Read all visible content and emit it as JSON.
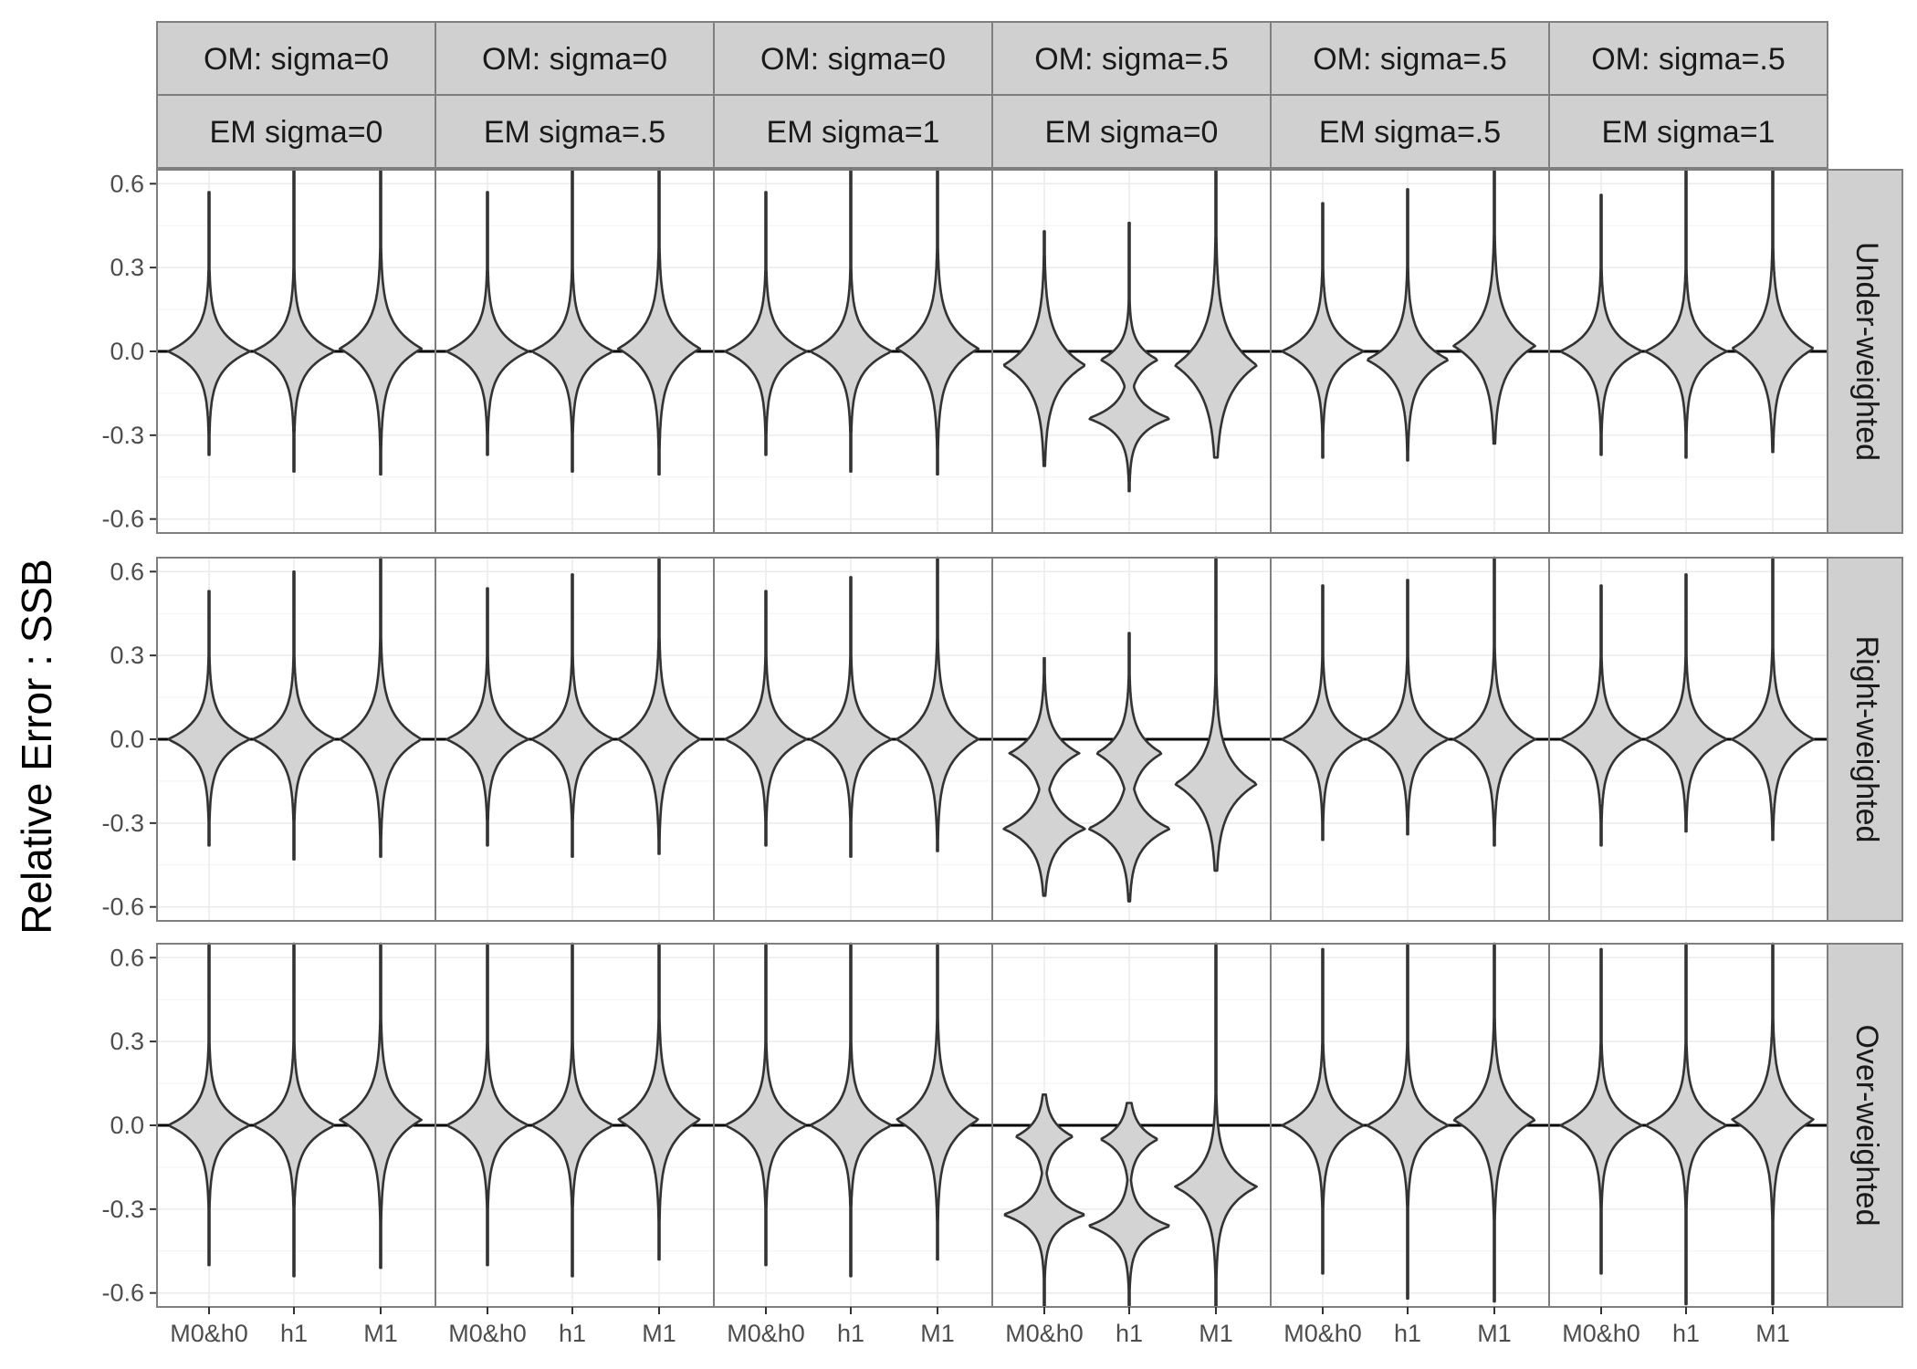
{
  "chart_data": {
    "type": "violin",
    "ylabel": "Relative Error : SSB",
    "xlabel": "",
    "ylim": [
      -0.65,
      0.65
    ],
    "yticks": [
      0.6,
      0.3,
      0.0,
      -0.3,
      -0.6
    ],
    "ytick_labels": [
      "0.6",
      "0.3",
      "0.0",
      "-0.3",
      "-0.6"
    ],
    "categories": [
      "M0&h0",
      "h1",
      "M1"
    ],
    "reference_line": 0.0,
    "grid": true,
    "fill_color": "#d3d3d3",
    "line_color": "#333333",
    "strip_color": "#d0d0d0",
    "columns": [
      {
        "om": "OM: sigma=0",
        "em": "EM sigma=0"
      },
      {
        "om": "OM: sigma=0",
        "em": "EM sigma=.5"
      },
      {
        "om": "OM: sigma=0",
        "em": "EM sigma=1"
      },
      {
        "om": "OM: sigma=.5",
        "em": "EM sigma=0"
      },
      {
        "om": "OM: sigma=.5",
        "em": "EM sigma=.5"
      },
      {
        "om": "OM: sigma=.5",
        "em": "EM sigma=1"
      }
    ],
    "rows": [
      "Under-weighted",
      "Right-weighted",
      "Over-weighted"
    ],
    "panels": [
      [
        [
          {
            "min": -0.37,
            "max": 0.57,
            "modes": [
              [
                0,
                1
              ]
            ],
            "spread": 0.09
          },
          {
            "min": -0.43,
            "max": 0.65,
            "modes": [
              [
                0,
                1
              ]
            ],
            "spread": 0.09
          },
          {
            "min": -0.44,
            "max": 0.65,
            "modes": [
              [
                0.01,
                1
              ]
            ],
            "spread": 0.11
          }
        ],
        [
          {
            "min": -0.37,
            "max": 0.57,
            "modes": [
              [
                0,
                1
              ]
            ],
            "spread": 0.09
          },
          {
            "min": -0.43,
            "max": 0.65,
            "modes": [
              [
                0,
                1
              ]
            ],
            "spread": 0.09
          },
          {
            "min": -0.44,
            "max": 0.65,
            "modes": [
              [
                0.01,
                1
              ]
            ],
            "spread": 0.11
          }
        ],
        [
          {
            "min": -0.37,
            "max": 0.57,
            "modes": [
              [
                0,
                1
              ]
            ],
            "spread": 0.09
          },
          {
            "min": -0.43,
            "max": 0.65,
            "modes": [
              [
                0,
                1
              ]
            ],
            "spread": 0.09
          },
          {
            "min": -0.44,
            "max": 0.65,
            "modes": [
              [
                0.01,
                1
              ]
            ],
            "spread": 0.11
          }
        ],
        [
          {
            "min": -0.41,
            "max": 0.43,
            "modes": [
              [
                -0.05,
                1
              ]
            ],
            "spread": 0.12
          },
          {
            "min": -0.5,
            "max": 0.46,
            "modes": [
              [
                -0.03,
                0.7
              ],
              [
                -0.24,
                1
              ]
            ],
            "spread": 0.07
          },
          {
            "min": -0.38,
            "max": 0.65,
            "modes": [
              [
                -0.05,
                1
              ]
            ],
            "spread": 0.14
          }
        ],
        [
          {
            "min": -0.38,
            "max": 0.53,
            "modes": [
              [
                0,
                1
              ]
            ],
            "spread": 0.09
          },
          {
            "min": -0.39,
            "max": 0.58,
            "modes": [
              [
                -0.03,
                1
              ]
            ],
            "spread": 0.1
          },
          {
            "min": -0.33,
            "max": 0.65,
            "modes": [
              [
                0.02,
                1
              ]
            ],
            "spread": 0.12
          }
        ],
        [
          {
            "min": -0.37,
            "max": 0.56,
            "modes": [
              [
                0,
                1
              ]
            ],
            "spread": 0.09
          },
          {
            "min": -0.38,
            "max": 0.65,
            "modes": [
              [
                0,
                1
              ]
            ],
            "spread": 0.09
          },
          {
            "min": -0.36,
            "max": 0.65,
            "modes": [
              [
                0.01,
                1
              ]
            ],
            "spread": 0.11
          }
        ]
      ],
      [
        [
          {
            "min": -0.38,
            "max": 0.53,
            "modes": [
              [
                0,
                1
              ]
            ],
            "spread": 0.09
          },
          {
            "min": -0.43,
            "max": 0.6,
            "modes": [
              [
                0,
                1
              ]
            ],
            "spread": 0.09
          },
          {
            "min": -0.42,
            "max": 0.65,
            "modes": [
              [
                0,
                1
              ]
            ],
            "spread": 0.11
          }
        ],
        [
          {
            "min": -0.38,
            "max": 0.54,
            "modes": [
              [
                0,
                1
              ]
            ],
            "spread": 0.09
          },
          {
            "min": -0.42,
            "max": 0.59,
            "modes": [
              [
                0,
                1
              ]
            ],
            "spread": 0.09
          },
          {
            "min": -0.41,
            "max": 0.65,
            "modes": [
              [
                0,
                1
              ]
            ],
            "spread": 0.11
          }
        ],
        [
          {
            "min": -0.38,
            "max": 0.53,
            "modes": [
              [
                0,
                1
              ]
            ],
            "spread": 0.09
          },
          {
            "min": -0.42,
            "max": 0.58,
            "modes": [
              [
                0,
                1
              ]
            ],
            "spread": 0.09
          },
          {
            "min": -0.4,
            "max": 0.65,
            "modes": [
              [
                0,
                1
              ]
            ],
            "spread": 0.11
          }
        ],
        [
          {
            "min": -0.56,
            "max": 0.29,
            "modes": [
              [
                -0.05,
                0.85
              ],
              [
                -0.32,
                1
              ]
            ],
            "spread": 0.09
          },
          {
            "min": -0.58,
            "max": 0.38,
            "modes": [
              [
                -0.05,
                0.8
              ],
              [
                -0.32,
                1
              ]
            ],
            "spread": 0.09
          },
          {
            "min": -0.47,
            "max": 0.65,
            "modes": [
              [
                -0.16,
                1
              ]
            ],
            "spread": 0.12
          }
        ],
        [
          {
            "min": -0.36,
            "max": 0.55,
            "modes": [
              [
                0,
                1
              ]
            ],
            "spread": 0.09
          },
          {
            "min": -0.34,
            "max": 0.57,
            "modes": [
              [
                0,
                1
              ]
            ],
            "spread": 0.09
          },
          {
            "min": -0.38,
            "max": 0.65,
            "modes": [
              [
                0,
                1
              ]
            ],
            "spread": 0.1
          }
        ],
        [
          {
            "min": -0.38,
            "max": 0.55,
            "modes": [
              [
                0,
                1
              ]
            ],
            "spread": 0.09
          },
          {
            "min": -0.33,
            "max": 0.59,
            "modes": [
              [
                0,
                1
              ]
            ],
            "spread": 0.09
          },
          {
            "min": -0.36,
            "max": 0.65,
            "modes": [
              [
                0,
                1
              ]
            ],
            "spread": 0.1
          }
        ]
      ],
      [
        [
          {
            "min": -0.5,
            "max": 0.65,
            "modes": [
              [
                0,
                1
              ]
            ],
            "spread": 0.09
          },
          {
            "min": -0.54,
            "max": 0.65,
            "modes": [
              [
                0,
                1
              ]
            ],
            "spread": 0.09
          },
          {
            "min": -0.51,
            "max": 0.65,
            "modes": [
              [
                0.02,
                1
              ]
            ],
            "spread": 0.11
          }
        ],
        [
          {
            "min": -0.5,
            "max": 0.65,
            "modes": [
              [
                0,
                1
              ]
            ],
            "spread": 0.09
          },
          {
            "min": -0.54,
            "max": 0.65,
            "modes": [
              [
                0,
                1
              ]
            ],
            "spread": 0.09
          },
          {
            "min": -0.48,
            "max": 0.65,
            "modes": [
              [
                0.02,
                1
              ]
            ],
            "spread": 0.11
          }
        ],
        [
          {
            "min": -0.5,
            "max": 0.65,
            "modes": [
              [
                0,
                1
              ]
            ],
            "spread": 0.09
          },
          {
            "min": -0.54,
            "max": 0.65,
            "modes": [
              [
                0,
                1
              ]
            ],
            "spread": 0.09
          },
          {
            "min": -0.48,
            "max": 0.65,
            "modes": [
              [
                0.02,
                1
              ]
            ],
            "spread": 0.11
          }
        ],
        [
          {
            "min": -0.65,
            "max": 0.11,
            "modes": [
              [
                -0.04,
                0.7
              ],
              [
                -0.32,
                1
              ]
            ],
            "spread": 0.07
          },
          {
            "min": -0.65,
            "max": 0.08,
            "modes": [
              [
                -0.05,
                0.7
              ],
              [
                -0.36,
                1
              ]
            ],
            "spread": 0.07
          },
          {
            "min": -0.65,
            "max": 0.65,
            "modes": [
              [
                -0.22,
                1
              ]
            ],
            "spread": 0.1
          }
        ],
        [
          {
            "min": -0.53,
            "max": 0.63,
            "modes": [
              [
                0,
                1
              ]
            ],
            "spread": 0.09
          },
          {
            "min": -0.62,
            "max": 0.65,
            "modes": [
              [
                0,
                1
              ]
            ],
            "spread": 0.09
          },
          {
            "min": -0.63,
            "max": 0.65,
            "modes": [
              [
                0.02,
                1
              ]
            ],
            "spread": 0.11
          }
        ],
        [
          {
            "min": -0.53,
            "max": 0.63,
            "modes": [
              [
                0,
                1
              ]
            ],
            "spread": 0.09
          },
          {
            "min": -0.64,
            "max": 0.65,
            "modes": [
              [
                0,
                1
              ]
            ],
            "spread": 0.09
          },
          {
            "min": -0.64,
            "max": 0.65,
            "modes": [
              [
                0.02,
                1
              ]
            ],
            "spread": 0.11
          }
        ]
      ]
    ]
  }
}
